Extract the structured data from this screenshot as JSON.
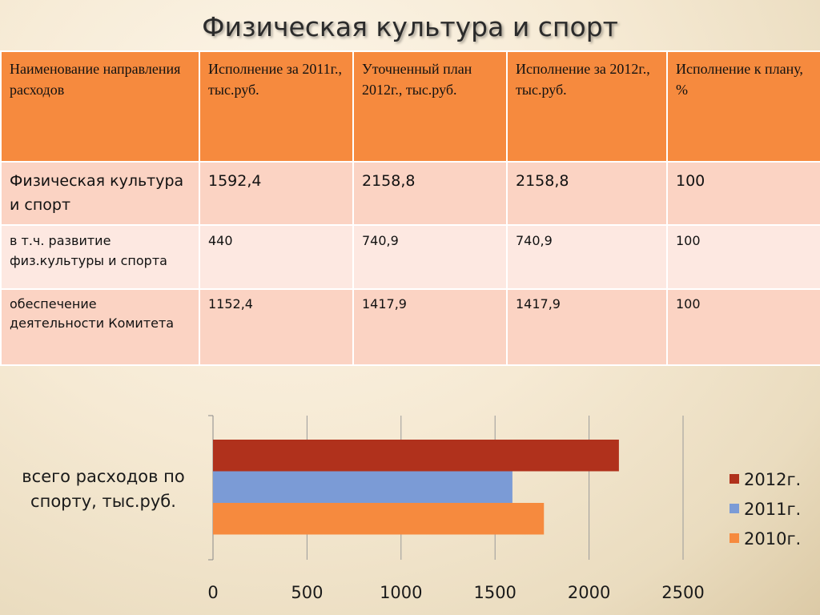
{
  "slide": {
    "title": "Физическая культура и спорт"
  },
  "table": {
    "headers": [
      "Наименование направления расходов",
      "Исполнение за 2011г., тыс.руб.",
      "Уточненный план 2012г., тыс.руб.",
      "Исполнение за 2012г., тыс.руб.",
      "Исполнение к плану, %"
    ],
    "rows": [
      [
        "Физическая культура и спорт",
        "1592,4",
        "2158,8",
        "2158,8",
        "100"
      ],
      [
        "в т.ч. развитие физ.культуры и спорта",
        "440",
        "740,9",
        "740,9",
        "100"
      ],
      [
        "обеспечение деятельности Комитета",
        "1152,4",
        "1417,9",
        "1417,9",
        "100"
      ]
    ]
  },
  "chart_data": {
    "type": "bar",
    "orientation": "horizontal",
    "category_label": "всего расходов по спорту, тыс.руб.",
    "series": [
      {
        "name": "2012г.",
        "value": 2158.8,
        "color": "#b0311c"
      },
      {
        "name": "2011г.",
        "value": 1592.4,
        "color": "#7b9bd6"
      },
      {
        "name": "2010г.",
        "value": 1760,
        "color": "#f68a3e"
      }
    ],
    "xlim": [
      0,
      2500
    ],
    "ticks": [
      0,
      500,
      1000,
      1500,
      2000,
      2500
    ],
    "grid": true,
    "legend": "right"
  }
}
